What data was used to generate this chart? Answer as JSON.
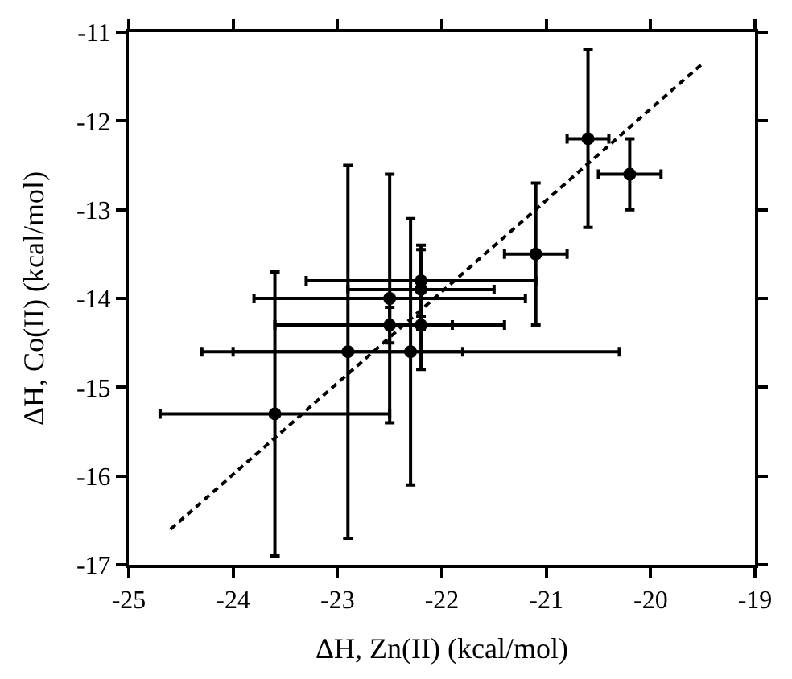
{
  "chart_data": {
    "type": "scatter",
    "xlabel": "ΔH, Zn(II) (kcal/mol)",
    "ylabel": "ΔH, Co(II) (kcal/mol)",
    "xlim": [
      -25,
      -19
    ],
    "xticks": [
      -25,
      -24,
      -23,
      -22,
      -21,
      -20,
      -19
    ],
    "ylim": [
      -17,
      -11
    ],
    "yticks": [
      -17,
      -16,
      -15,
      -14,
      -13,
      -12,
      -11
    ],
    "series": [
      {
        "color": "#000000",
        "marker": "circle",
        "x": [
          -20.6,
          -20.2,
          -21.1,
          -22.2,
          -22.2,
          -22.5,
          -22.5,
          -22.2,
          -22.9,
          -22.3,
          -23.6
        ],
        "values": [
          -12.2,
          -12.6,
          -13.5,
          -13.8,
          -13.9,
          -14.0,
          -14.3,
          -14.3,
          -14.6,
          -14.6,
          -15.3
        ],
        "errors": [
          1.0,
          0.4,
          0.8,
          0.4,
          0.45,
          1.4,
          0.2,
          0.5,
          2.1,
          1.5,
          1.6
        ],
        "xerrors": [
          0.2,
          0.3,
          0.3,
          1.1,
          0.7,
          1.3,
          1.1,
          0.3,
          1.1,
          2.0,
          1.1
        ]
      },
      {
        "type": "line",
        "color": "#000000",
        "marker": "none",
        "line_style": "dashed",
        "x": [
          -24.6,
          -19.5
        ],
        "values": [
          -16.6,
          -11.35
        ]
      }
    ]
  }
}
